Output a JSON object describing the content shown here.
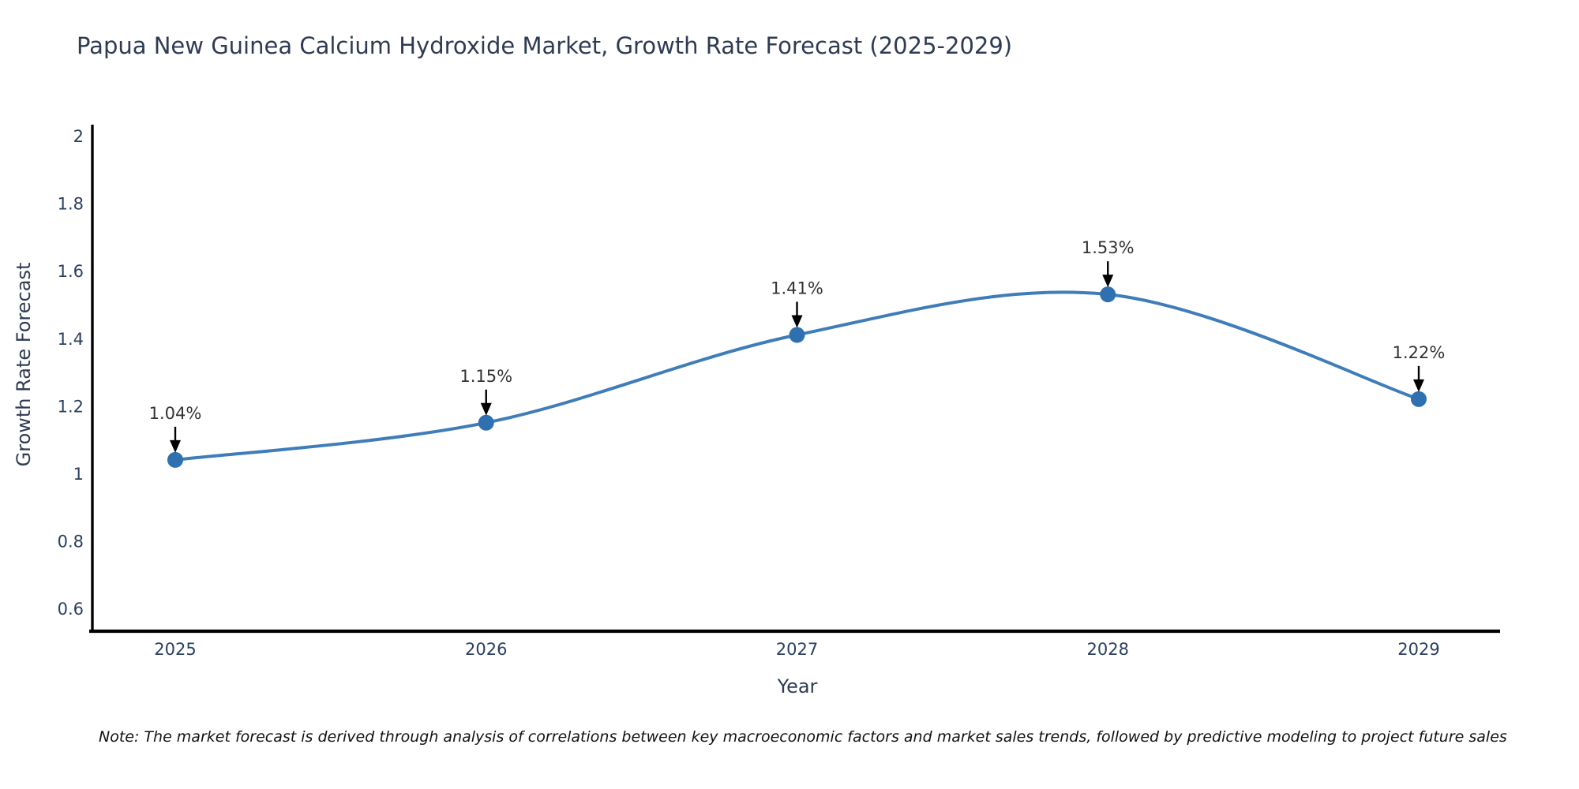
{
  "page": {
    "background": "#ffffff"
  },
  "chart_data": {
    "type": "line",
    "title": "Papua New Guinea Calcium Hydroxide Market, Growth Rate Forecast (2025-2029)",
    "xlabel": "Year",
    "ylabel": "Growth Rate Forecast",
    "note": "Note: The market forecast is derived through analysis of correlations between key macroeconomic factors and market sales trends, followed by predictive modeling to project future sales",
    "x": [
      2025,
      2026,
      2027,
      2028,
      2029
    ],
    "values": [
      1.04,
      1.15,
      1.41,
      1.53,
      1.22
    ],
    "point_labels": [
      "1.04%",
      "1.15%",
      "1.41%",
      "1.53%",
      "1.22%"
    ],
    "x_tick_labels": [
      "2025",
      "2026",
      "2027",
      "2028",
      "2029"
    ],
    "y_ticks": [
      0.6,
      0.8,
      1,
      1.2,
      1.4,
      1.6,
      1.8,
      2
    ],
    "ylim": [
      0.533,
      2.033
    ],
    "line_shape": "spline",
    "grid": false,
    "legend": "none",
    "colors": {
      "line": "#3f7db9",
      "marker": "#2e70b0",
      "axis": "#000000",
      "title_text": "#2f3b52",
      "tick_text": "#2a3f5f",
      "annotation_text": "#333333",
      "arrow": "#000000",
      "note_text": "#111111"
    }
  }
}
